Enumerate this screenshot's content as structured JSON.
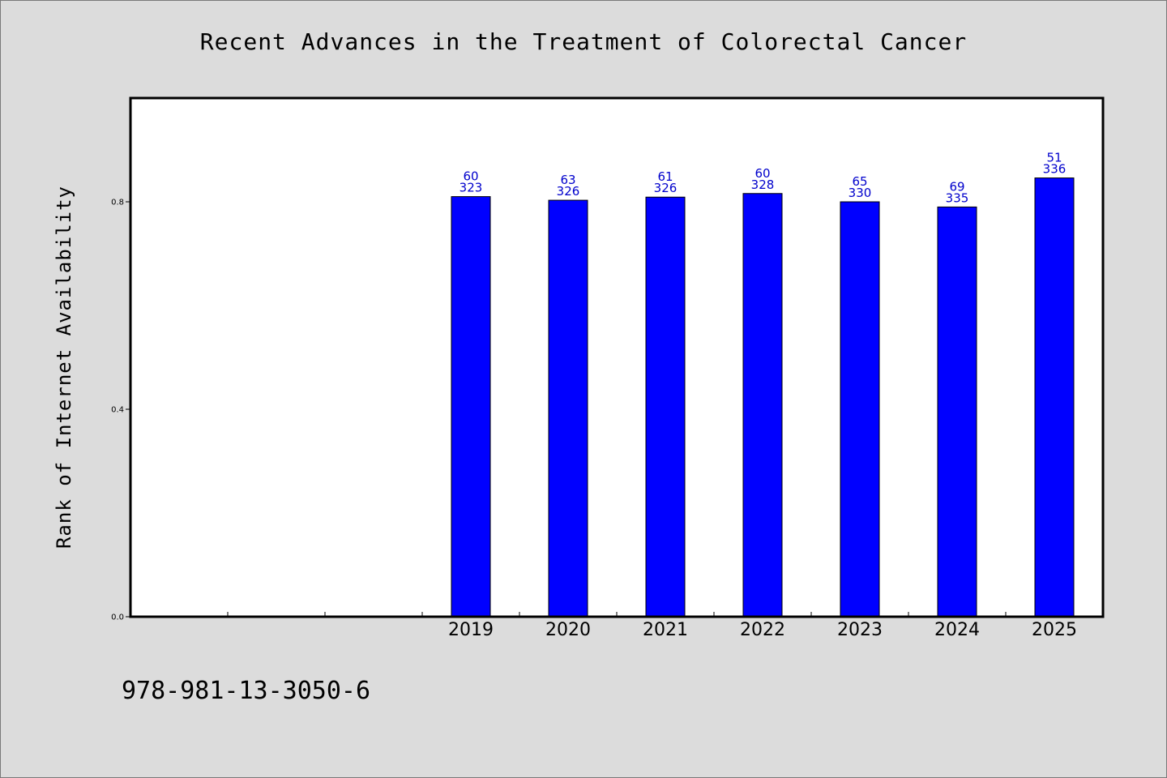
{
  "chart_data": {
    "type": "bar",
    "title": "Recent Advances in the Treatment of Colorectal Cancer",
    "xlabel": "",
    "ylabel": "Rank of Internet Availability",
    "categories": [
      "",
      "",
      "",
      "2019",
      "2020",
      "2021",
      "2022",
      "2023",
      "2024",
      "2025"
    ],
    "values": [
      null,
      null,
      null,
      0.81,
      0.803,
      0.809,
      0.816,
      0.8,
      0.79,
      0.846
    ],
    "data_labels": [
      null,
      null,
      null,
      [
        "60",
        "323"
      ],
      [
        "63",
        "326"
      ],
      [
        "61",
        "326"
      ],
      [
        "60",
        "328"
      ],
      [
        "65",
        "330"
      ],
      [
        "69",
        "335"
      ],
      [
        "51",
        "336"
      ]
    ],
    "ylim": [
      0,
      1.0
    ],
    "yticks": [
      0.0,
      0.4,
      0.8
    ],
    "ytick_labels": [
      "0.0",
      "0.4",
      "0.8"
    ],
    "grid": false,
    "legend": "none",
    "bar_color": "#0000ff",
    "data_label_color": "#0000cc"
  },
  "footer": {
    "code": "978-981-13-3050-6"
  },
  "colors": {
    "background": "#dcdcdc",
    "plot_background": "#ffffff",
    "bar": "#0000ff"
  }
}
